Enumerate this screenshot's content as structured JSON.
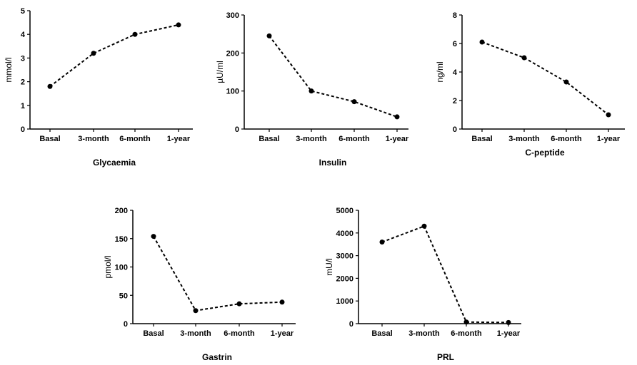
{
  "chart_data": [
    {
      "type": "line",
      "title": "Glycaemia",
      "ylabel": "mmol/l",
      "categories": [
        "Basal",
        "3-month",
        "6-month",
        "1-year"
      ],
      "values": [
        1.8,
        3.2,
        4.0,
        4.4
      ],
      "ylim": [
        0,
        5
      ],
      "yticks": [
        0,
        1,
        2,
        3,
        4,
        5
      ]
    },
    {
      "type": "line",
      "title": "Insulin",
      "ylabel": "µU/ml",
      "categories": [
        "Basal",
        "3-month",
        "6-month",
        "1-year"
      ],
      "values": [
        245,
        100,
        72,
        32
      ],
      "ylim": [
        0,
        300
      ],
      "yticks": [
        0,
        100,
        200,
        300
      ]
    },
    {
      "type": "line",
      "title": "C-peptide",
      "ylabel": "ng/ml",
      "categories": [
        "Basal",
        "3-month",
        "6-month",
        "1-year"
      ],
      "values": [
        6.1,
        5.0,
        3.3,
        1.0
      ],
      "ylim": [
        0,
        8
      ],
      "yticks": [
        0,
        2,
        4,
        6,
        8
      ]
    },
    {
      "type": "line",
      "title": "Gastrin",
      "ylabel": "pmol/l",
      "categories": [
        "Basal",
        "3-month",
        "6-month",
        "1-year"
      ],
      "values": [
        154,
        23,
        35,
        38
      ],
      "ylim": [
        0,
        200
      ],
      "yticks": [
        0,
        50,
        100,
        150,
        200
      ]
    },
    {
      "type": "line",
      "title": "PRL",
      "ylabel": "mU/l",
      "categories": [
        "Basal",
        "3-month",
        "6-month",
        "1-year"
      ],
      "values": [
        3600,
        4300,
        70,
        50
      ],
      "ylim": [
        0,
        5000
      ],
      "yticks": [
        0,
        1000,
        2000,
        3000,
        4000,
        5000
      ]
    }
  ]
}
